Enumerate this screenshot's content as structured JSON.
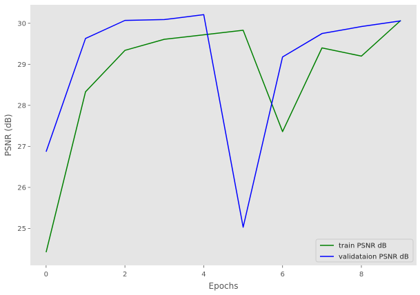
{
  "chart_data": {
    "type": "line",
    "title": "",
    "xlabel": "Epochs",
    "ylabel": "PSNR (dB)",
    "x": [
      0,
      1,
      2,
      3,
      4,
      5,
      6,
      7,
      8,
      9
    ],
    "xlim": [
      -0.4,
      9.4
    ],
    "ylim": [
      24.1,
      30.45
    ],
    "xticks": [
      0,
      2,
      4,
      6,
      8
    ],
    "yticks": [
      25,
      26,
      27,
      28,
      29,
      30
    ],
    "grid": false,
    "background": "#e5e5e5",
    "legend_position": "lower-right",
    "series": [
      {
        "name": "train PSNR dB",
        "color": "#008000",
        "values": [
          24.42,
          28.33,
          29.34,
          29.61,
          29.72,
          29.83,
          27.36,
          29.4,
          29.2,
          30.07
        ]
      },
      {
        "name": "validataion PSNR dB",
        "color": "#0000ff",
        "values": [
          26.87,
          29.63,
          30.07,
          30.09,
          30.21,
          25.03,
          29.18,
          29.75,
          29.92,
          30.06
        ]
      }
    ]
  }
}
